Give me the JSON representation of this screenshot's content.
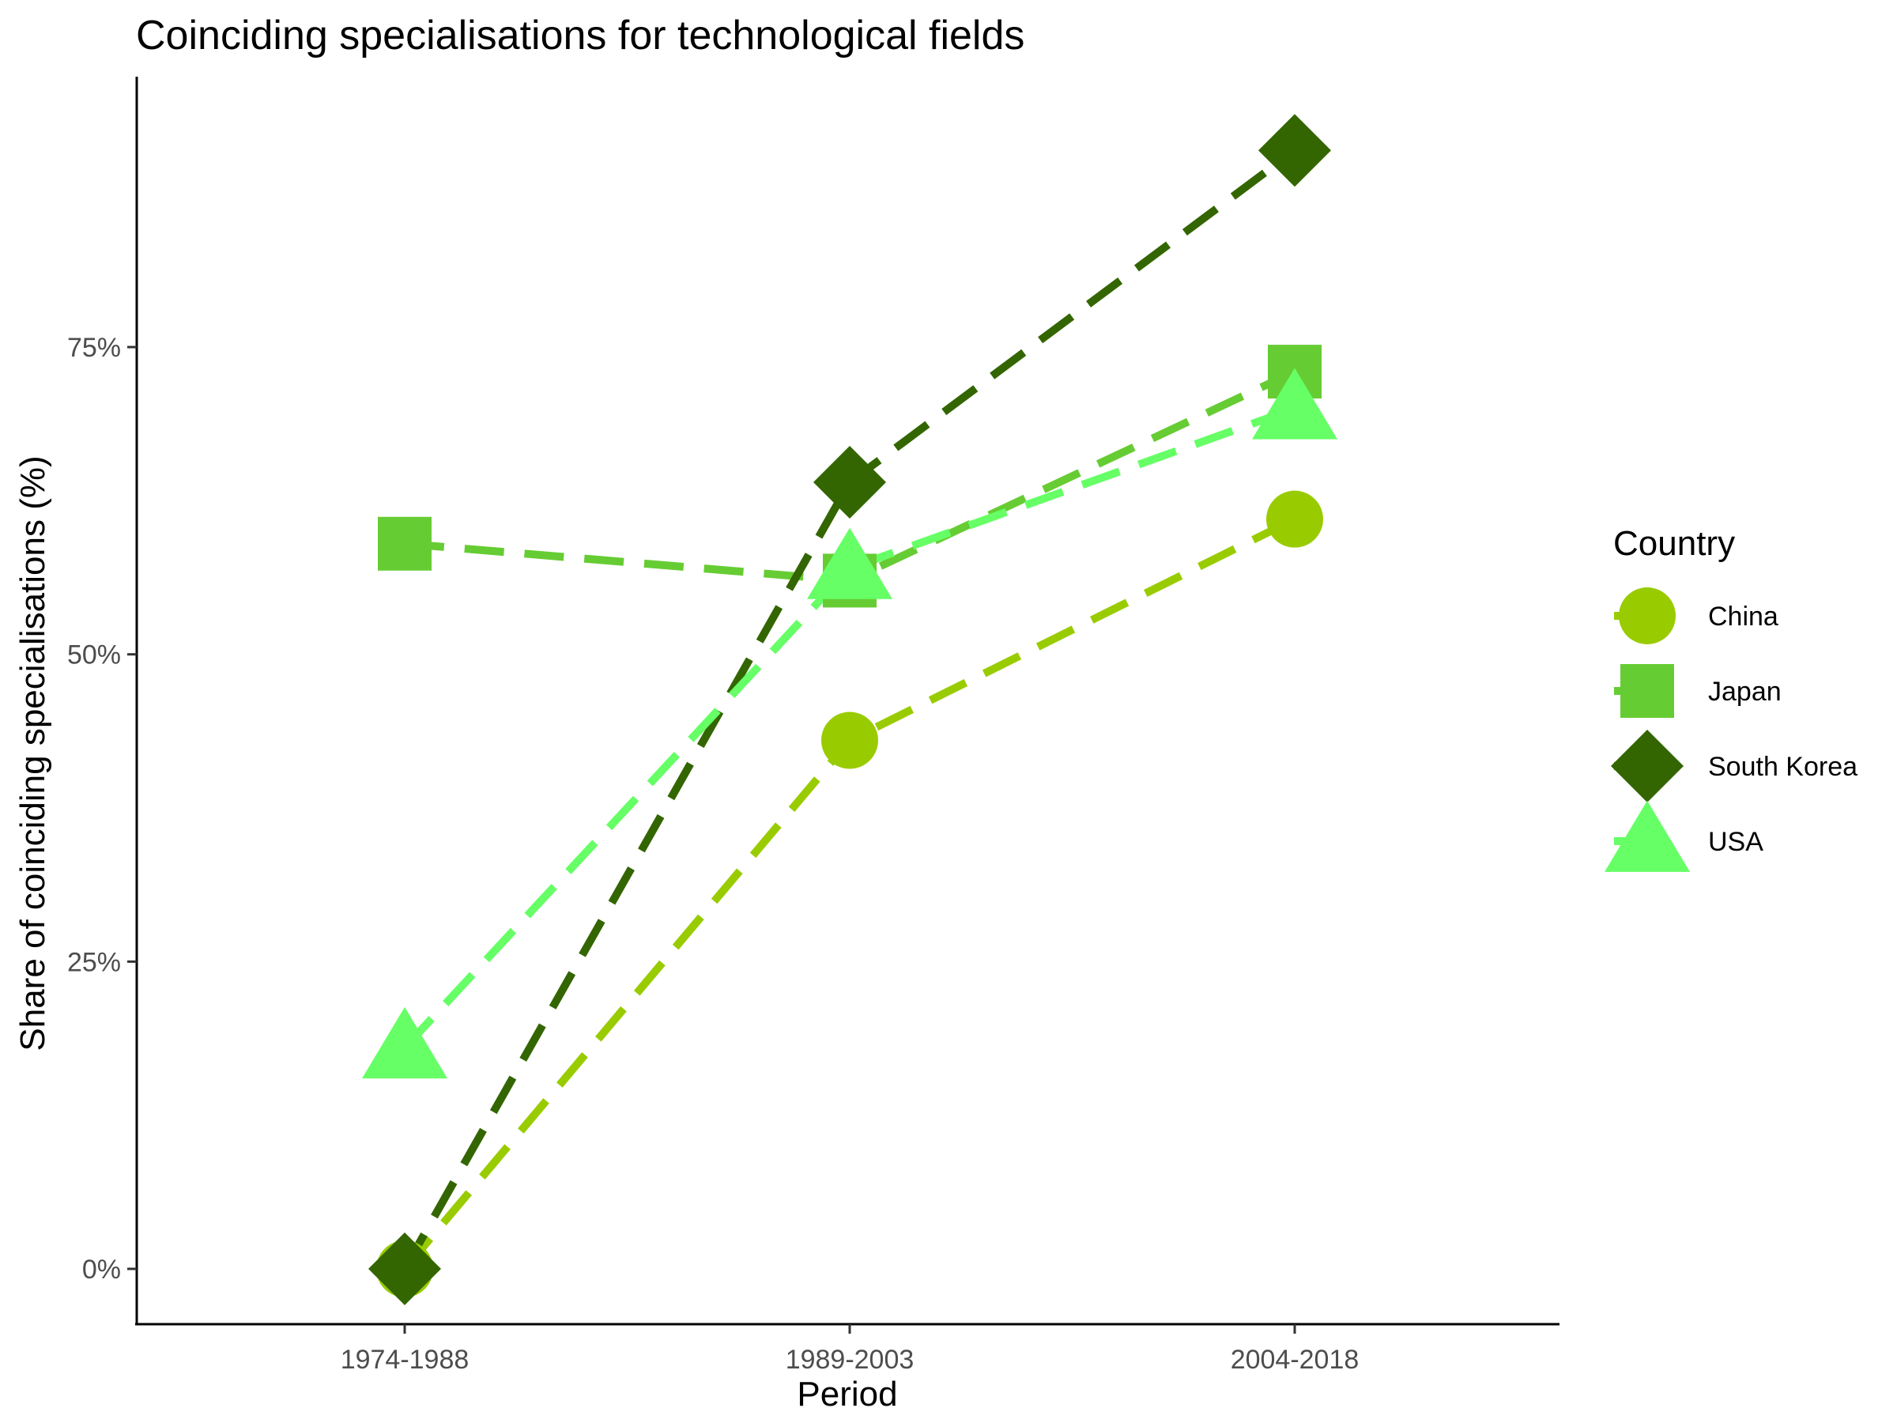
{
  "chart_data": {
    "type": "line",
    "title": "Coinciding specialisations for technological fields",
    "xlabel": "Period",
    "ylabel": "Share of coinciding specialisations (%)",
    "categories": [
      "1974-1988",
      "1989-2003",
      "2004-2018"
    ],
    "ylim": [
      -4.5,
      97
    ],
    "yticks": [
      0,
      25,
      50,
      75
    ],
    "ytick_labels": [
      "0%",
      "25%",
      "50%",
      "75%"
    ],
    "grid": false,
    "legend": {
      "title": "Country",
      "position": "right"
    },
    "series": [
      {
        "name": "China",
        "color": "#99cc00",
        "marker": "circle",
        "line_style": "dashed",
        "values": [
          0,
          43,
          61
        ]
      },
      {
        "name": "Japan",
        "color": "#66cc33",
        "marker": "square",
        "line_style": "dashed",
        "values": [
          59,
          56,
          73
        ]
      },
      {
        "name": "South Korea",
        "color": "#336600",
        "marker": "diamond",
        "line_style": "dashed",
        "values": [
          0,
          64,
          91
        ]
      },
      {
        "name": "USA",
        "color": "#66ff66",
        "marker": "triangle",
        "line_style": "dashed",
        "values": [
          18,
          57,
          70
        ]
      }
    ]
  }
}
